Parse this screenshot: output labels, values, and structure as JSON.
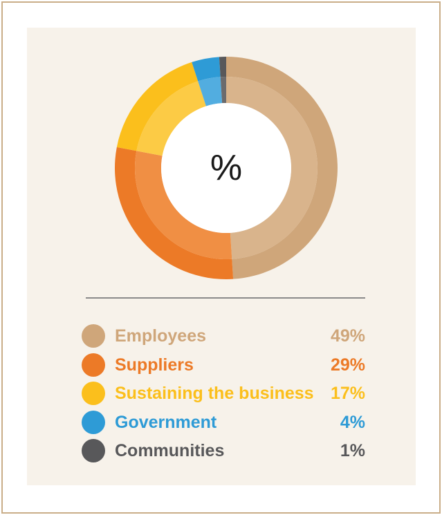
{
  "chart_data": {
    "type": "pie",
    "center_label": "%",
    "categories": [
      "Employees",
      "Suppliers",
      "Sustaining the business",
      "Government",
      "Communities"
    ],
    "values": [
      49,
      29,
      17,
      4,
      1
    ],
    "value_labels": [
      "49%",
      "29%",
      "17%",
      "4%",
      "1%"
    ],
    "colors": [
      "#cfa67a",
      "#ec7a27",
      "#fbbf1c",
      "#2e9bd6",
      "#58585a"
    ],
    "inner_colors": [
      "#d9b48c",
      "#f08f44",
      "#fccb45",
      "#52ade0",
      "#6b6b6d"
    ],
    "legend_position": "bottom"
  }
}
